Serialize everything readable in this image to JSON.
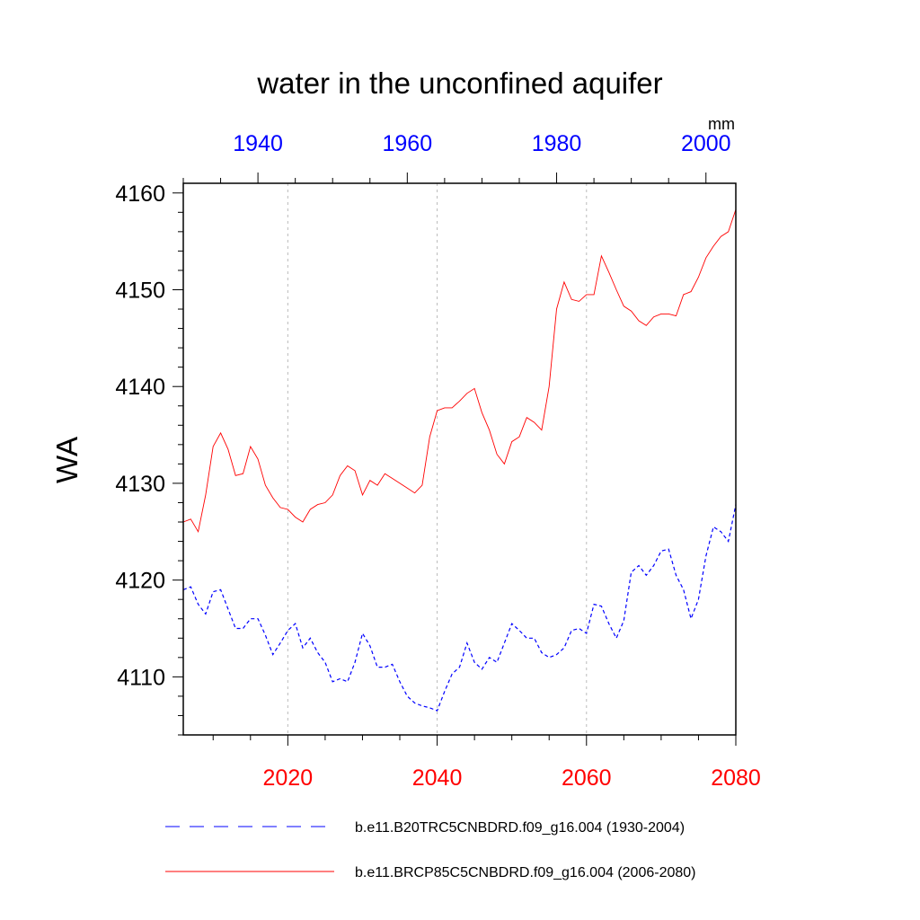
{
  "chart_data": {
    "type": "line",
    "title": "water in the unconfined aquifer",
    "units": "mm",
    "ylabel": "WA",
    "ylim": [
      4104,
      4161
    ],
    "y_ticks": [
      4110,
      4120,
      4130,
      4140,
      4150,
      4160
    ],
    "grid": "dashed vertical lines at bottom-axis major ticks",
    "legend_position": "bottom",
    "x_bottom": {
      "range": [
        2006,
        2080
      ],
      "ticks": [
        2020,
        2040,
        2060,
        2080
      ],
      "color": "#ff0000"
    },
    "x_top": {
      "range": [
        1930,
        2004
      ],
      "ticks": [
        1940,
        1960,
        1980,
        2000
      ],
      "color": "#0000ff"
    },
    "series": [
      {
        "name": "b.e11.B20TRC5CNBDRD.f09_g16.004 (1930-2004)",
        "axis": "top",
        "color": "#0000ff",
        "dash": "dashed",
        "x": [
          1930,
          1931,
          1932,
          1933,
          1934,
          1935,
          1936,
          1937,
          1938,
          1939,
          1940,
          1941,
          1942,
          1943,
          1944,
          1945,
          1946,
          1947,
          1948,
          1949,
          1950,
          1951,
          1952,
          1953,
          1954,
          1955,
          1956,
          1957,
          1958,
          1959,
          1960,
          1961,
          1962,
          1963,
          1964,
          1965,
          1966,
          1967,
          1968,
          1969,
          1970,
          1971,
          1972,
          1973,
          1974,
          1975,
          1976,
          1977,
          1978,
          1979,
          1980,
          1981,
          1982,
          1983,
          1984,
          1985,
          1986,
          1987,
          1988,
          1989,
          1990,
          1991,
          1992,
          1993,
          1994,
          1995,
          1996,
          1997,
          1998,
          1999,
          2000,
          2001,
          2002,
          2003,
          2004
        ],
        "values": [
          4119.0,
          4119.3,
          4117.5,
          4116.5,
          4118.8,
          4119.0,
          4117.0,
          4115.0,
          4115.0,
          4116.0,
          4116.0,
          4114.3,
          4112.3,
          4113.5,
          4114.8,
          4115.5,
          4113.0,
          4114.0,
          4112.5,
          4111.5,
          4109.5,
          4109.8,
          4109.5,
          4111.5,
          4114.5,
          4113.2,
          4111.0,
          4111.0,
          4111.3,
          4109.5,
          4108.0,
          4107.3,
          4107.0,
          4106.8,
          4106.5,
          4108.5,
          4110.3,
          4111.0,
          4113.5,
          4111.5,
          4110.8,
          4112.0,
          4111.5,
          4113.5,
          4115.5,
          4114.8,
          4114.0,
          4114.0,
          4112.5,
          4112.0,
          4112.3,
          4113.0,
          4114.8,
          4115.0,
          4114.5,
          4117.5,
          4117.3,
          4115.5,
          4114.0,
          4115.8,
          4120.8,
          4121.5,
          4120.5,
          4121.5,
          4123.0,
          4123.2,
          4120.5,
          4119.0,
          4116.0,
          4118.0,
          4122.5,
          4125.5,
          4125.0,
          4124.0,
          4127.8
        ]
      },
      {
        "name": "b.e11.BRCP85C5CNBDRD.f09_g16.004 (2006-2080)",
        "axis": "bottom",
        "color": "#ff0000",
        "dash": "solid",
        "x": [
          2006,
          2007,
          2008,
          2009,
          2010,
          2011,
          2012,
          2013,
          2014,
          2015,
          2016,
          2017,
          2018,
          2019,
          2020,
          2021,
          2022,
          2023,
          2024,
          2025,
          2026,
          2027,
          2028,
          2029,
          2030,
          2031,
          2032,
          2033,
          2034,
          2035,
          2036,
          2037,
          2038,
          2039,
          2040,
          2041,
          2042,
          2043,
          2044,
          2045,
          2046,
          2047,
          2048,
          2049,
          2050,
          2051,
          2052,
          2053,
          2054,
          2055,
          2056,
          2057,
          2058,
          2059,
          2060,
          2061,
          2062,
          2063,
          2064,
          2065,
          2066,
          2067,
          2068,
          2069,
          2070,
          2071,
          2072,
          2073,
          2074,
          2075,
          2076,
          2077,
          2078,
          2079,
          2080
        ],
        "values": [
          4126.0,
          4126.3,
          4125.0,
          4128.8,
          4133.8,
          4135.2,
          4133.5,
          4130.8,
          4131.0,
          4133.8,
          4132.5,
          4129.8,
          4128.5,
          4127.5,
          4127.3,
          4126.5,
          4126.0,
          4127.3,
          4127.8,
          4128.0,
          4128.8,
          4130.8,
          4131.8,
          4131.3,
          4128.8,
          4130.3,
          4129.8,
          4131.0,
          4130.5,
          4130.0,
          4129.5,
          4129.0,
          4129.8,
          4134.8,
          4137.5,
          4137.8,
          4137.8,
          4138.5,
          4139.3,
          4139.8,
          4137.3,
          4135.5,
          4133.0,
          4132.0,
          4134.3,
          4134.8,
          4136.8,
          4136.3,
          4135.5,
          4140.0,
          4148.0,
          4150.8,
          4149.0,
          4148.8,
          4149.5,
          4149.5,
          4153.5,
          4151.8,
          4150.0,
          4148.3,
          4147.8,
          4146.8,
          4146.3,
          4147.2,
          4147.5,
          4147.5,
          4147.3,
          4149.5,
          4149.8,
          4151.3,
          4153.3,
          4154.5,
          4155.5,
          4156.0,
          4158.3
        ]
      }
    ]
  }
}
